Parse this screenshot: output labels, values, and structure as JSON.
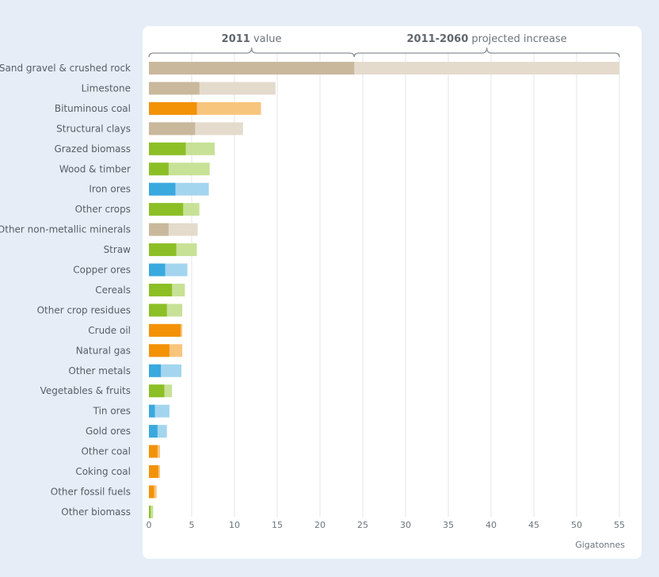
{
  "chart_data": {
    "type": "bar",
    "title": "",
    "header": {
      "left_bold": "2011",
      "left_rest": " value",
      "right_bold": "2011-2060",
      "right_rest": " projected increase"
    },
    "xlabel": "Gigatonnes",
    "xlim": [
      0,
      55
    ],
    "xticks": [
      "0",
      "5",
      "10",
      "15",
      "20",
      "25",
      "30",
      "35",
      "40",
      "45",
      "50",
      "55"
    ],
    "grid": true,
    "series": [
      {
        "name": "2011 value"
      },
      {
        "name": "2011-2060 projected increase"
      }
    ],
    "categories": [
      {
        "label": "Sand gravel & crushed rock",
        "group": "construction",
        "v2011": 24.0,
        "v2060": 55.0
      },
      {
        "label": "Limestone",
        "group": "construction",
        "v2011": 5.9,
        "v2060": 14.8
      },
      {
        "label": "Bituminous coal",
        "group": "fossil",
        "v2011": 5.6,
        "v2060": 13.1
      },
      {
        "label": "Structural clays",
        "group": "construction",
        "v2011": 5.4,
        "v2060": 11.0
      },
      {
        "label": "Grazed biomass",
        "group": "biomass",
        "v2011": 4.3,
        "v2060": 7.7
      },
      {
        "label": "Wood & timber",
        "group": "biomass",
        "v2011": 2.3,
        "v2060": 7.1
      },
      {
        "label": "Iron ores",
        "group": "metal",
        "v2011": 3.1,
        "v2060": 7.0
      },
      {
        "label": "Other crops",
        "group": "biomass",
        "v2011": 4.0,
        "v2060": 5.9
      },
      {
        "label": "Other non-metallic minerals",
        "group": "construction",
        "v2011": 2.3,
        "v2060": 5.7
      },
      {
        "label": "Straw",
        "group": "biomass",
        "v2011": 3.2,
        "v2060": 5.6
      },
      {
        "label": "Copper ores",
        "group": "metal",
        "v2011": 1.9,
        "v2060": 4.5
      },
      {
        "label": "Cereals",
        "group": "biomass",
        "v2011": 2.7,
        "v2060": 4.2
      },
      {
        "label": "Other crop residues",
        "group": "biomass",
        "v2011": 2.1,
        "v2060": 3.9
      },
      {
        "label": "Crude oil",
        "group": "fossil",
        "v2011": 3.7,
        "v2060": 3.9
      },
      {
        "label": "Natural gas",
        "group": "fossil",
        "v2011": 2.4,
        "v2060": 3.9
      },
      {
        "label": "Other metals",
        "group": "metal",
        "v2011": 1.4,
        "v2060": 3.8
      },
      {
        "label": "Vegetables & fruits",
        "group": "biomass",
        "v2011": 1.8,
        "v2060": 2.7
      },
      {
        "label": "Tin ores",
        "group": "metal",
        "v2011": 0.7,
        "v2060": 2.4
      },
      {
        "label": "Gold ores",
        "group": "metal",
        "v2011": 1.0,
        "v2060": 2.1
      },
      {
        "label": "Other coal",
        "group": "fossil",
        "v2011": 1.0,
        "v2060": 1.3
      },
      {
        "label": "Coking coal",
        "group": "fossil",
        "v2011": 1.1,
        "v2060": 1.3
      },
      {
        "label": "Other fossil fuels",
        "group": "fossil",
        "v2011": 0.6,
        "v2060": 0.9
      },
      {
        "label": "Other biomass",
        "group": "biomass",
        "v2011": 0.2,
        "v2060": 0.5
      }
    ],
    "colors": {
      "construction": {
        "base": "#c9b89c",
        "light": "#e4dbcd"
      },
      "fossil": {
        "base": "#f39207",
        "light": "#f8c57d"
      },
      "biomass": {
        "base": "#8cbf26",
        "light": "#c7e196"
      },
      "metal": {
        "base": "#3aa9de",
        "light": "#a3d5ef"
      }
    }
  }
}
